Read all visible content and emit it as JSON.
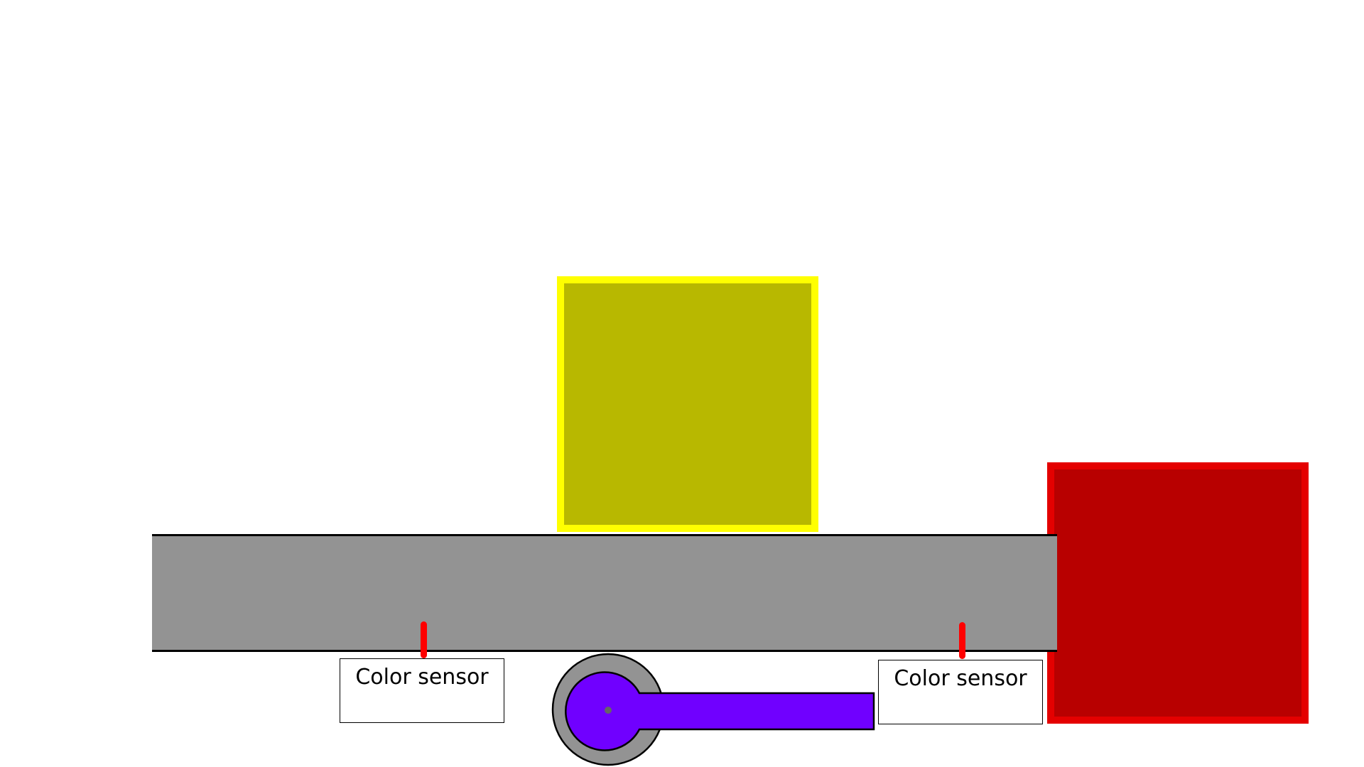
{
  "sensors": [
    {
      "label": "Color sensor"
    },
    {
      "label": "Color sensor"
    }
  ],
  "colors": {
    "yellow_block_border": "#ffff00",
    "yellow_block_fill": "#b8b800",
    "red_block_border": "#e40000",
    "red_block_fill": "#b80000",
    "conveyor": "#939393",
    "sensor_probe": "#ff0000",
    "actuator_arm": "#7000ff",
    "actuator_housing": "#939393"
  }
}
